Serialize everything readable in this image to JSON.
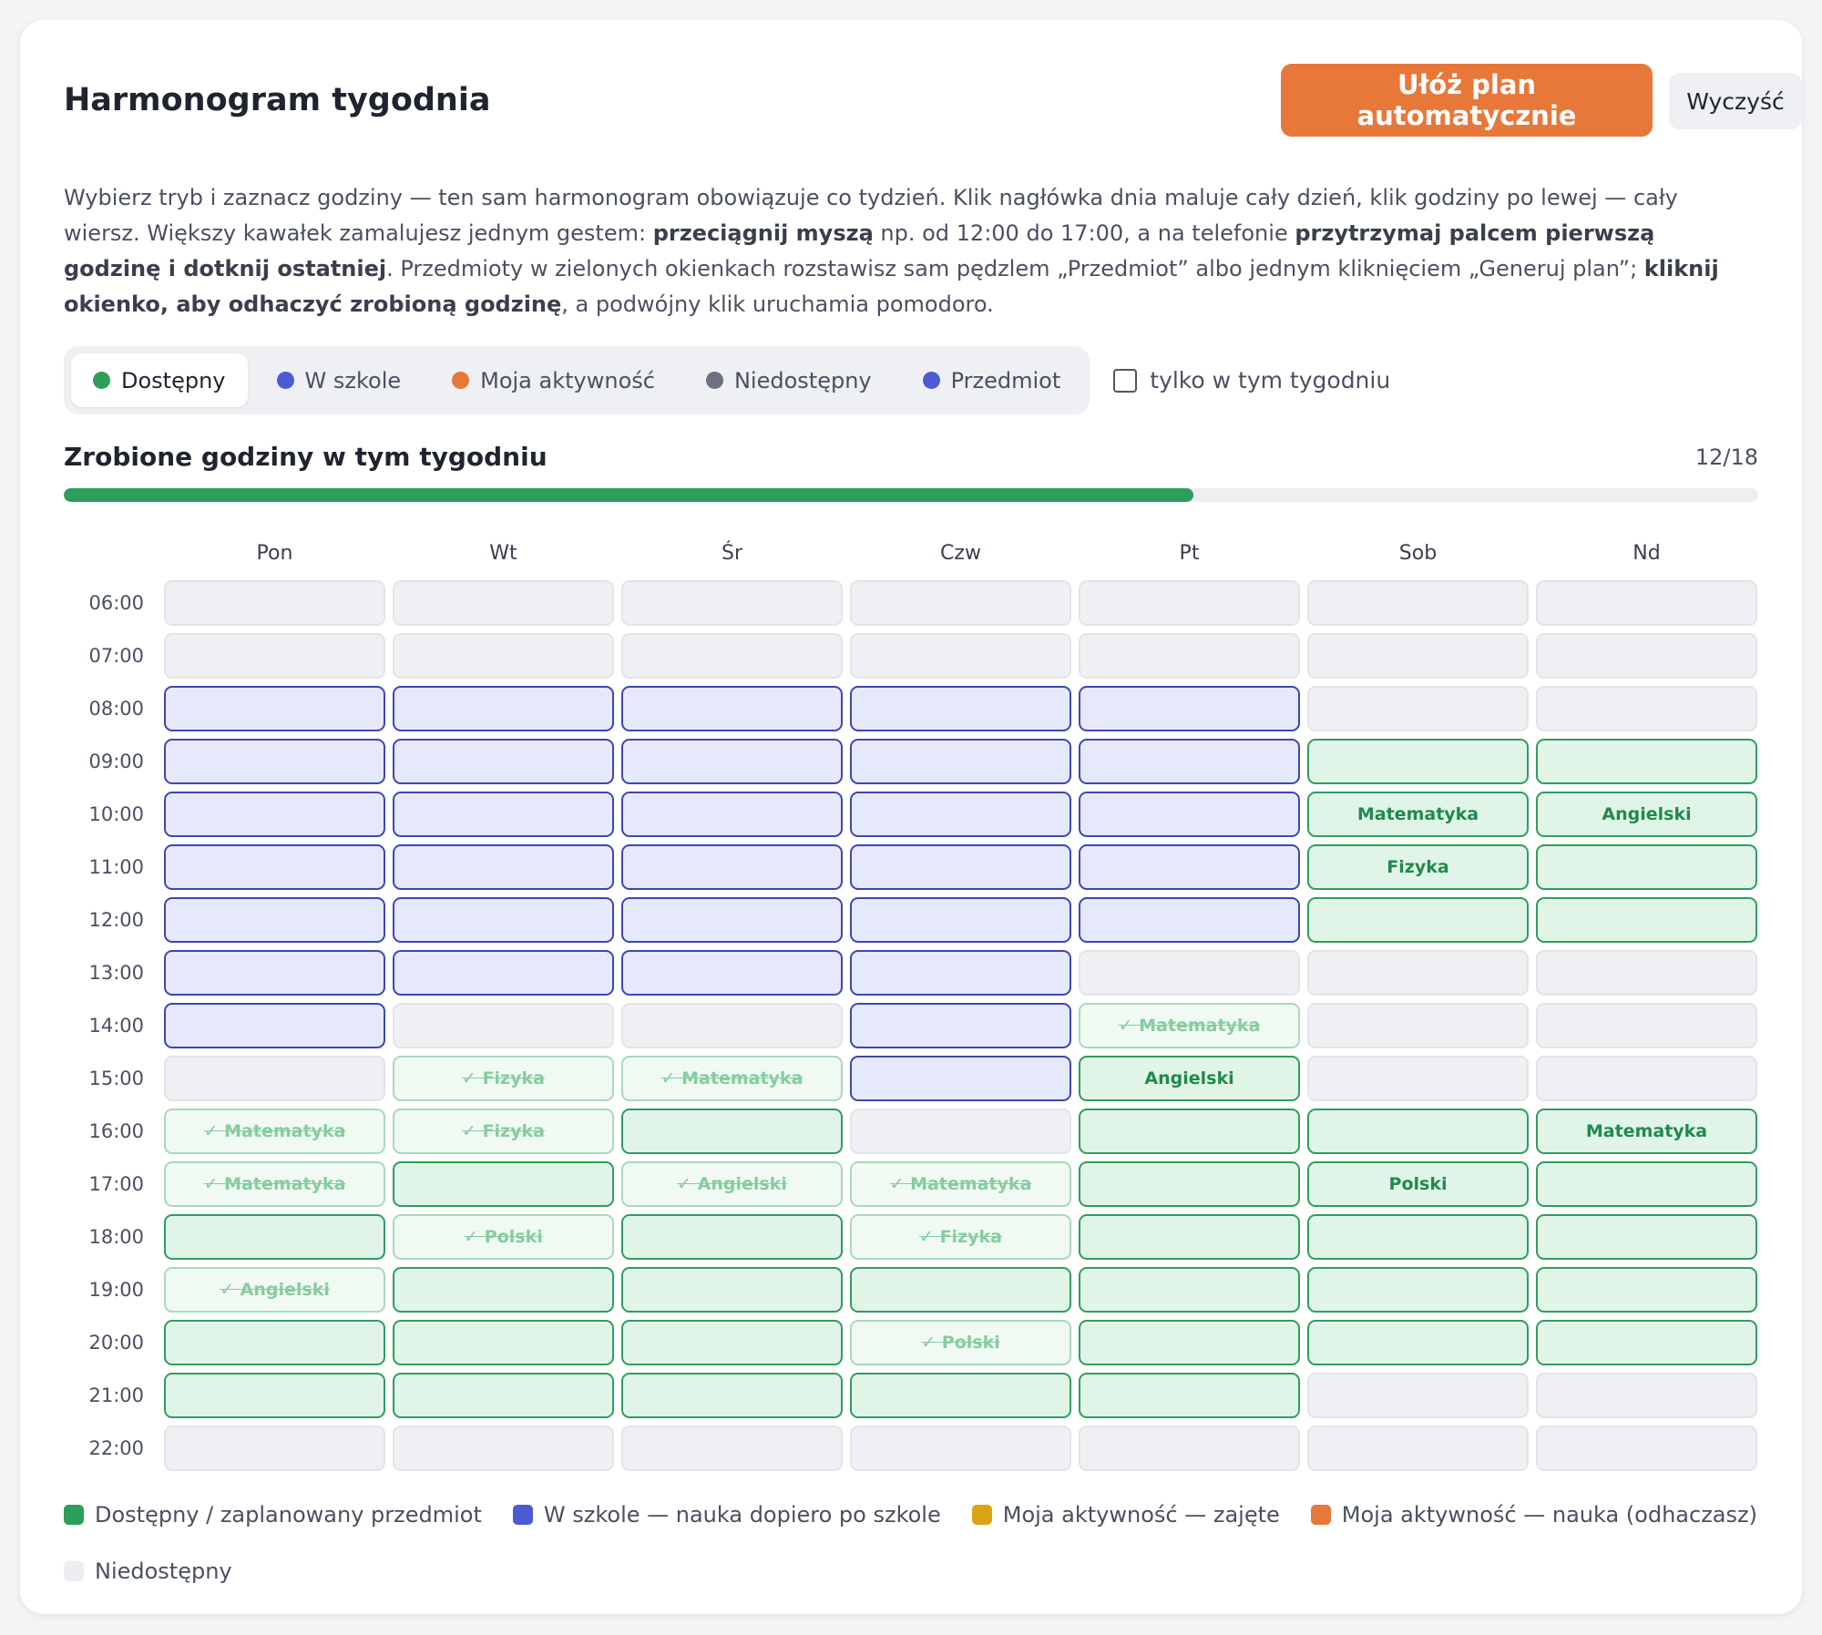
{
  "header": {
    "title": "Harmonogram tygodnia",
    "auto_button": "Ułóż plan automatycznie",
    "clear_button": "Wyczyść"
  },
  "description": [
    {
      "text": "Wybierz tryb i zaznacz godziny — ten sam harmonogram obowiązuje co tydzień. Klik nagłówka dnia maluje cały dzień, klik godziny po lewej — cały wiersz. Większy kawałek zamalujesz jednym gestem: ",
      "bold": false
    },
    {
      "text": "przeciągnij myszą",
      "bold": true
    },
    {
      "text": " np. od 12:00 do 17:00, a na telefonie ",
      "bold": false
    },
    {
      "text": "przytrzymaj palcem pierwszą godzinę i dotknij ostatniej",
      "bold": true
    },
    {
      "text": ". Przedmioty w zielonych okienkach rozstawisz sam pędzlem „Przedmiot” albo jednym kliknięciem „Generuj plan”; ",
      "bold": false
    },
    {
      "text": "kliknij okienko, aby odhaczyć zrobioną godzinę",
      "bold": true
    },
    {
      "text": ", a podwójny klik uruchamia pomodoro.",
      "bold": false
    }
  ],
  "modes": [
    {
      "label": "Dostępny",
      "color": "#2e9e5b",
      "active": true
    },
    {
      "label": "W szkole",
      "color": "#4c5bd4",
      "active": false
    },
    {
      "label": "Moja aktywność",
      "color": "#e8773a",
      "active": false
    },
    {
      "label": "Niedostępny",
      "color": "#6b7280",
      "active": false
    },
    {
      "label": "Przedmiot",
      "color": "#4c5bd4",
      "active": false
    }
  ],
  "week_only": {
    "label": "tylko w tym tygodniu",
    "checked": false
  },
  "progress": {
    "title": "Zrobione godziny w tym tygodniu",
    "label": "12/18",
    "done": 12,
    "total": 18
  },
  "days": [
    "Pon",
    "Wt",
    "Śr",
    "Czw",
    "Pt",
    "Sob",
    "Nd"
  ],
  "hours": [
    "06:00",
    "07:00",
    "08:00",
    "09:00",
    "10:00",
    "11:00",
    "12:00",
    "13:00",
    "14:00",
    "15:00",
    "16:00",
    "17:00",
    "18:00",
    "19:00",
    "20:00",
    "21:00",
    "22:00"
  ],
  "grid": [
    [
      "off",
      "off",
      "off",
      "off",
      "off",
      "off",
      "off"
    ],
    [
      "off",
      "off",
      "off",
      "off",
      "off",
      "off",
      "off"
    ],
    [
      "school",
      "school",
      "school",
      "school",
      "school",
      "off",
      "off"
    ],
    [
      "school",
      "school",
      "school",
      "school",
      "school",
      "free",
      "free"
    ],
    [
      "school",
      "school",
      "school",
      "school",
      "school",
      {
        "state": "free",
        "subject": "Matematyka"
      },
      {
        "state": "free",
        "subject": "Angielski"
      }
    ],
    [
      "school",
      "school",
      "school",
      "school",
      "school",
      {
        "state": "free",
        "subject": "Fizyka"
      },
      "free"
    ],
    [
      "school",
      "school",
      "school",
      "school",
      "school",
      "free",
      "free"
    ],
    [
      "school",
      "school",
      "school",
      "school",
      "off",
      "off",
      "off"
    ],
    [
      "school",
      "off",
      "off",
      "school",
      {
        "state": "done",
        "subject": "✓ Matematyka"
      },
      "off",
      "off"
    ],
    [
      "off",
      {
        "state": "done",
        "subject": "✓ Fizyka"
      },
      {
        "state": "done",
        "subject": "✓ Matematyka"
      },
      "school",
      {
        "state": "free",
        "subject": "Angielski"
      },
      "off",
      "off"
    ],
    [
      {
        "state": "done",
        "subject": "✓ Matematyka"
      },
      {
        "state": "done",
        "subject": "✓ Fizyka"
      },
      "free",
      "off",
      "free",
      "free",
      {
        "state": "free",
        "subject": "Matematyka"
      }
    ],
    [
      {
        "state": "done",
        "subject": "✓ Matematyka"
      },
      "free",
      {
        "state": "done",
        "subject": "✓ Angielski"
      },
      {
        "state": "done",
        "subject": "✓ Matematyka"
      },
      "free",
      {
        "state": "free",
        "subject": "Polski"
      },
      "free"
    ],
    [
      "free",
      {
        "state": "done",
        "subject": "✓ Polski"
      },
      "free",
      {
        "state": "done",
        "subject": "✓ Fizyka"
      },
      "free",
      "free",
      "free"
    ],
    [
      {
        "state": "done",
        "subject": "✓ Angielski"
      },
      "free",
      "free",
      "free",
      "free",
      "free",
      "free"
    ],
    [
      "free",
      "free",
      "free",
      {
        "state": "done",
        "subject": "✓ Polski"
      },
      "free",
      "free",
      "free"
    ],
    [
      "free",
      "free",
      "free",
      "free",
      "free",
      "off",
      "off"
    ],
    [
      "off",
      "off",
      "off",
      "off",
      "off",
      "off",
      "off"
    ]
  ],
  "legend": [
    {
      "label": "Dostępny / zaplanowany przedmiot",
      "color": "#2e9e5b"
    },
    {
      "label": "W szkole — nauka dopiero po szkole",
      "color": "#4c5bd4"
    },
    {
      "label": "Moja aktywność — zajęte",
      "color": "#d9a514"
    },
    {
      "label": "Moja aktywność — nauka (odhaczasz)",
      "color": "#e8773a"
    },
    {
      "label": "Niedostępny",
      "color": "#eceef1"
    }
  ]
}
